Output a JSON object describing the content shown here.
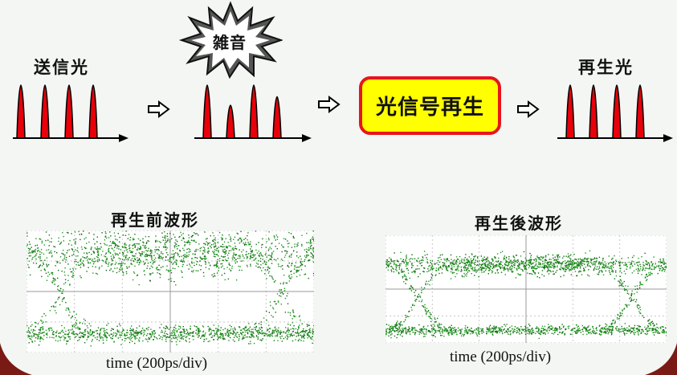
{
  "tx_label": "送信光",
  "noise_label": "雑音",
  "regen_label": "光信号再生",
  "rx_label": "再生光",
  "before_title": "再生前波形",
  "after_title": "再生後波形",
  "before_caption": "time (200ps/div)",
  "after_caption": "time (200ps/div)",
  "arrow_icon": "hollow-right-arrow",
  "colors": {
    "pulse": "#e8000b",
    "noise_burst": "#5a5a5a",
    "regen_fill": "#ffff00",
    "regen_border": "#e8141b",
    "eye_trace": "#1f9a1f"
  },
  "pulse_trains": {
    "transmitted": [
      1.0,
      1.0,
      1.0,
      1.0
    ],
    "noisy": [
      1.0,
      0.62,
      1.0,
      0.78
    ],
    "regenerated": [
      1.0,
      1.0,
      1.0,
      1.0
    ]
  }
}
